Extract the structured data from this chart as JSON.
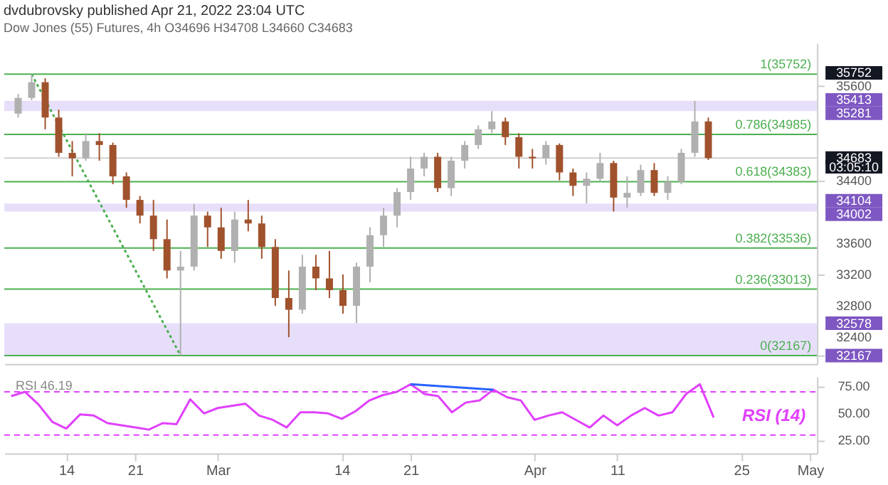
{
  "chart_data": [
    {
      "type": "candlestick",
      "title": "dvdubrovsky published Apr 21, 2022 23:04 UTC",
      "subtitle": "Dow Jones (55) Futures, 4h  O34696 H34708 L34660 C34683",
      "categories": [
        null,
        null,
        null,
        null,
        null,
        null,
        null,
        null,
        null,
        null,
        null,
        null,
        null,
        null,
        null,
        null,
        null,
        null,
        null,
        null,
        null,
        null,
        null,
        null,
        null,
        null,
        null,
        null,
        null,
        null,
        null,
        null,
        null,
        null,
        null,
        null,
        null,
        null,
        null,
        null,
        null,
        null,
        null,
        null,
        null,
        null,
        null,
        null,
        null,
        null,
        null,
        null,
        null,
        null,
        null,
        null,
        null,
        null,
        null
      ],
      "ohlc": [
        [
          35250,
          35500,
          35200,
          35450
        ],
        [
          35450,
          35752,
          35420,
          35650
        ],
        [
          35650,
          35700,
          35050,
          35200
        ],
        [
          35200,
          35300,
          34700,
          34750
        ],
        [
          34750,
          34900,
          34450,
          34680
        ],
        [
          34680,
          35000,
          34650,
          34900
        ],
        [
          34900,
          35000,
          34650,
          34850
        ],
        [
          34850,
          34880,
          34350,
          34450
        ],
        [
          34450,
          34500,
          34050,
          34150
        ],
        [
          34150,
          34200,
          33850,
          33950
        ],
        [
          33950,
          34150,
          33500,
          33650
        ],
        [
          33650,
          33900,
          33150,
          33250
        ],
        [
          33250,
          33500,
          32167,
          33300
        ],
        [
          33300,
          34100,
          33250,
          33950
        ],
        [
          33950,
          34000,
          33550,
          33800
        ],
        [
          33800,
          34050,
          33400,
          33500
        ],
        [
          33500,
          34000,
          33350,
          33900
        ],
        [
          33900,
          34150,
          33750,
          33850
        ],
        [
          33850,
          33950,
          33400,
          33550
        ],
        [
          33550,
          33650,
          32800,
          32900
        ],
        [
          32900,
          33250,
          32400,
          32750
        ],
        [
          32750,
          33450,
          32700,
          33300
        ],
        [
          33300,
          33450,
          33000,
          33150
        ],
        [
          33150,
          33500,
          32900,
          33000
        ],
        [
          33000,
          33200,
          32700,
          32800
        ],
        [
          32800,
          33350,
          32580,
          33300
        ],
        [
          33300,
          33800,
          33100,
          33700
        ],
        [
          33700,
          34050,
          33550,
          33950
        ],
        [
          33950,
          34300,
          33800,
          34250
        ],
        [
          34250,
          34700,
          34150,
          34550
        ],
        [
          34550,
          34750,
          34450,
          34700
        ],
        [
          34700,
          34750,
          34250,
          34300
        ],
        [
          34300,
          34700,
          34200,
          34650
        ],
        [
          34650,
          34900,
          34550,
          34850
        ],
        [
          34850,
          35100,
          34800,
          35050
        ],
        [
          35050,
          35281,
          35000,
          35150
        ],
        [
          35150,
          35200,
          34850,
          34950
        ],
        [
          34950,
          35000,
          34550,
          34700
        ],
        [
          34700,
          34800,
          34550,
          34680
        ],
        [
          34680,
          34900,
          34600,
          34850
        ],
        [
          34850,
          34870,
          34400,
          34500
        ],
        [
          34500,
          34550,
          34200,
          34330
        ],
        [
          34330,
          34500,
          34104,
          34420
        ],
        [
          34420,
          34750,
          34380,
          34620
        ],
        [
          34620,
          34650,
          34002,
          34180
        ],
        [
          34180,
          34450,
          34050,
          34240
        ],
        [
          34240,
          34600,
          34200,
          34530
        ],
        [
          34530,
          34620,
          34200,
          34240
        ],
        [
          34240,
          34450,
          34150,
          34380
        ],
        [
          34380,
          34800,
          34350,
          34750
        ],
        [
          34750,
          35413,
          34700,
          35150
        ],
        [
          35150,
          35200,
          34660,
          34683
        ],
        null,
        null,
        null,
        null,
        null,
        null,
        null
      ],
      "colors": [
        "#b0b0b0",
        "#b0b0b0",
        "#a0522d",
        "#a0522d",
        "#a0522d",
        "#b0b0b0",
        "#a0522d",
        "#a0522d",
        "#a0522d",
        "#a0522d",
        "#a0522d",
        "#a0522d",
        "#b0b0b0",
        "#b0b0b0",
        "#a0522d",
        "#a0522d",
        "#b0b0b0",
        "#a0522d",
        "#a0522d",
        "#a0522d",
        "#a0522d",
        "#b0b0b0",
        "#a0522d",
        "#a0522d",
        "#a0522d",
        "#b0b0b0",
        "#b0b0b0",
        "#b0b0b0",
        "#b0b0b0",
        "#b0b0b0",
        "#b0b0b0",
        "#a0522d",
        "#b0b0b0",
        "#b0b0b0",
        "#b0b0b0",
        "#b0b0b0",
        "#a0522d",
        "#a0522d",
        "#a0522d",
        "#b0b0b0",
        "#a0522d",
        "#a0522d",
        "#b0b0b0",
        "#b0b0b0",
        "#a0522d",
        "#b0b0b0",
        "#b0b0b0",
        "#a0522d",
        "#b0b0b0",
        "#b0b0b0",
        "#b0b0b0",
        "#a0522d",
        null,
        null,
        null,
        null,
        null,
        null,
        null
      ],
      "series": [
        {
          "type": "line",
          "values": [
            null,
            35752,
            null,
            null,
            null,
            null,
            null,
            null,
            null,
            null,
            null,
            null,
            32167,
            null,
            null,
            null,
            null,
            null,
            null,
            null,
            null,
            null,
            null,
            null,
            null,
            null,
            null,
            null,
            null,
            null,
            null,
            null,
            null,
            null,
            null,
            null,
            null,
            null,
            null,
            null,
            null,
            null,
            null,
            null,
            null,
            null,
            null,
            null,
            null,
            null,
            null,
            null,
            null,
            null,
            null,
            null,
            null,
            null,
            null
          ],
          "color": "#4caf50",
          "line_style": "dotted"
        }
      ],
      "ylim": [
        32060,
        36150
      ],
      "yticks": [
        32167,
        32400,
        32578,
        32800,
        33200,
        33600,
        34002,
        34104,
        34400,
        34683,
        35281,
        35413,
        35600,
        35752
      ],
      "tick_labels": "y",
      "ref_lines": [
        {
          "axis": "y",
          "value": 35752,
          "label": "1(35752)",
          "color": "#4caf50"
        },
        {
          "axis": "y",
          "value": 34985,
          "label": "0.786(34985)",
          "color": "#4caf50"
        },
        {
          "axis": "y",
          "value": 34383,
          "label": "0.618(34383)",
          "color": "#4caf50"
        },
        {
          "axis": "y",
          "value": 33536,
          "label": "0.382(33536)",
          "color": "#4caf50"
        },
        {
          "axis": "y",
          "value": 33013,
          "label": "0.236(33013)",
          "color": "#4caf50"
        },
        {
          "axis": "y",
          "value": 32167,
          "label": "0(32167)",
          "color": "#4caf50"
        },
        {
          "axis": "y",
          "value": 34683,
          "label": null,
          "color": "#d0d0d0"
        }
      ],
      "bands": [
        {
          "axis": "y",
          "from": 35281,
          "to": 35413,
          "label": null,
          "color": "#e4dcfa"
        },
        {
          "axis": "y",
          "from": 34002,
          "to": 34104,
          "label": null,
          "color": "#e4dcfa"
        },
        {
          "axis": "y",
          "from": 32167,
          "to": 32578,
          "label": null,
          "color": "#e4dcfa"
        }
      ],
      "annotations": [
        "03:05:10"
      ]
    },
    {
      "type": "line",
      "categories": [
        null,
        null,
        null,
        null,
        "14",
        null,
        null,
        null,
        null,
        "21",
        null,
        null,
        null,
        null,
        null,
        "Mar",
        null,
        null,
        null,
        null,
        null,
        null,
        null,
        null,
        "14",
        null,
        null,
        null,
        null,
        "21",
        null,
        null,
        null,
        null,
        null,
        null,
        null,
        null,
        "Apr",
        null,
        null,
        null,
        null,
        null,
        "11",
        null,
        null,
        null,
        null,
        null,
        null,
        null,
        null,
        "25",
        null,
        null,
        null,
        null,
        "May"
      ],
      "series": [
        {
          "name": "RSI (14)",
          "color": "#e040fb",
          "values": [
            66,
            70,
            58,
            42,
            36,
            49,
            48,
            41,
            39,
            37,
            35,
            41,
            40,
            63,
            50,
            55,
            57,
            59,
            48,
            44,
            37,
            51,
            51,
            50,
            45,
            52,
            62,
            67,
            70,
            77,
            68,
            66,
            51,
            60,
            62,
            72,
            65,
            62,
            44,
            48,
            51,
            44,
            37,
            48,
            39,
            48,
            55,
            48,
            51,
            68,
            77,
            46.19,
            null,
            null,
            null,
            null,
            null,
            null,
            null
          ]
        },
        {
          "type": "line",
          "values": [
            null,
            null,
            null,
            null,
            null,
            null,
            null,
            null,
            null,
            null,
            null,
            null,
            null,
            null,
            null,
            null,
            null,
            null,
            null,
            null,
            null,
            null,
            null,
            null,
            null,
            null,
            null,
            null,
            null,
            77,
            null,
            null,
            null,
            null,
            null,
            72,
            null,
            null,
            null,
            null,
            null,
            null,
            null,
            null,
            null,
            null,
            null,
            null,
            null,
            null,
            null,
            null,
            null,
            null,
            null,
            null,
            null,
            null,
            null
          ],
          "color": "#2962ff"
        }
      ],
      "ylim": [
        13,
        84
      ],
      "yticks": [
        {
          "value": 25,
          "label": "25.00"
        },
        {
          "value": 50,
          "label": "50.00"
        },
        {
          "value": 75,
          "label": "75.00"
        }
      ],
      "ref_lines": [
        {
          "axis": "y",
          "value": 70,
          "label": null,
          "color": "#e040fb",
          "line_style": "dashed"
        },
        {
          "axis": "y",
          "value": 30,
          "label": null,
          "color": "#e040fb",
          "line_style": "dashed"
        }
      ],
      "annotations": [
        "RSI 46.19"
      ]
    }
  ]
}
